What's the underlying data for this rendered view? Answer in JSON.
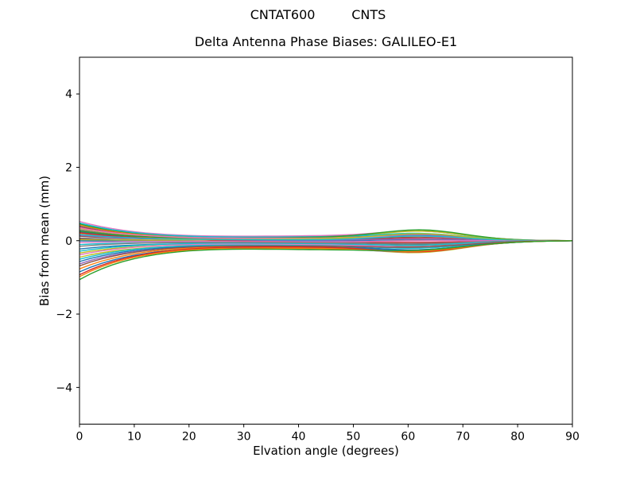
{
  "figure": {
    "suptitle": "CNTAT600         CNTS",
    "title": "Delta Antenna Phase Biases: GALILEO-E1",
    "xlabel": "Elvation angle (degrees)",
    "ylabel": "Bias from mean (mm)"
  },
  "chart_data": {
    "type": "line",
    "suptitle": "CNTAT600         CNTS",
    "title": "Delta Antenna Phase Biases: GALILEO-E1",
    "xlabel": "Elvation angle (degrees)",
    "ylabel": "Bias from mean (mm)",
    "xlim": [
      0,
      90
    ],
    "ylim": [
      -5,
      5
    ],
    "xticks": [
      0,
      10,
      20,
      30,
      40,
      50,
      60,
      70,
      80,
      90
    ],
    "yticks": [
      -4,
      -2,
      0,
      2,
      4
    ],
    "grid": false,
    "legend": null,
    "background": "#ffffff",
    "axes_color": "#000000",
    "line_width": 1.4,
    "x_samples": {
      "start": 0,
      "end": 90,
      "step": 2
    },
    "series_model": "y(x) = (v0*exp(-x/12) + m*exp(-((x-48)/28)^2) + b*exp(-((x-63)/11)^2)) * (1-(x/90)^8); v0 = bias at 0 deg elevation (mm), m = mid-elevation offset (mm), b = bump amplitude near 63 deg (mm); all curves converge to 0 mm at 90 deg",
    "series": [
      {
        "color": "#1f77b4",
        "v0": 0.4,
        "m": 0.08,
        "b": 0.1
      },
      {
        "color": "#ff7f0e",
        "v0": 0.42,
        "m": 0.05,
        "b": 0.15
      },
      {
        "color": "#2ca02c",
        "v0": 0.45,
        "m": 0.1,
        "b": 0.2
      },
      {
        "color": "#d62728",
        "v0": 0.37,
        "m": 0.02,
        "b": 0.05
      },
      {
        "color": "#9467bd",
        "v0": 0.28,
        "m": 0.06,
        "b": 0.12
      },
      {
        "color": "#8c564b",
        "v0": 0.12,
        "m": 0.03,
        "b": 0.08
      },
      {
        "color": "#e377c2",
        "v0": 0.52,
        "m": 0.12,
        "b": 0.18
      },
      {
        "color": "#7f7f7f",
        "v0": 0.3,
        "m": 0.0,
        "b": 0.02
      },
      {
        "color": "#bcbd22",
        "v0": 0.33,
        "m": 0.07,
        "b": 0.22
      },
      {
        "color": "#17becf",
        "v0": 0.48,
        "m": 0.09,
        "b": 0.14
      },
      {
        "color": "#1f77b4",
        "v0": 0.24,
        "m": -0.02,
        "b": 0.06
      },
      {
        "color": "#ff7f0e",
        "v0": 0.2,
        "m": 0.04,
        "b": 0.1
      },
      {
        "color": "#2ca02c",
        "v0": 0.26,
        "m": 0.08,
        "b": 0.25
      },
      {
        "color": "#d62728",
        "v0": 0.22,
        "m": -0.04,
        "b": -0.02
      },
      {
        "color": "#9467bd",
        "v0": 0.15,
        "m": 0.01,
        "b": 0.04
      },
      {
        "color": "#8c564b",
        "v0": 0.05,
        "m": -0.06,
        "b": -0.05
      },
      {
        "color": "#e377c2",
        "v0": 0.35,
        "m": 0.06,
        "b": 0.08
      },
      {
        "color": "#7f7f7f",
        "v0": 0.08,
        "m": -0.08,
        "b": -0.08
      },
      {
        "color": "#bcbd22",
        "v0": 0.02,
        "m": 0.05,
        "b": 0.16
      },
      {
        "color": "#17becf",
        "v0": 0.17,
        "m": 0.02,
        "b": 0.12
      },
      {
        "color": "#1f77b4",
        "v0": 0.0,
        "m": -0.1,
        "b": -0.1
      },
      {
        "color": "#e377c2",
        "v0": -0.05,
        "m": -0.03,
        "b": 0.02
      },
      {
        "color": "#17becf",
        "v0": -0.1,
        "m": -0.12,
        "b": -0.12
      },
      {
        "color": "#7f7f7f",
        "v0": -0.15,
        "m": -0.05,
        "b": -0.04
      },
      {
        "color": "#1f77b4",
        "v0": -0.22,
        "m": -0.14,
        "b": -0.15
      },
      {
        "color": "#17becf",
        "v0": -0.28,
        "m": -0.08,
        "b": -0.06
      },
      {
        "color": "#bcbd22",
        "v0": -0.33,
        "m": -0.15,
        "b": -0.18
      },
      {
        "color": "#e377c2",
        "v0": -0.38,
        "m": -0.1,
        "b": -0.1
      },
      {
        "color": "#bcbd22",
        "v0": -0.44,
        "m": -0.18,
        "b": -0.2
      },
      {
        "color": "#17becf",
        "v0": -0.5,
        "m": -0.12,
        "b": -0.12
      },
      {
        "color": "#1f77b4",
        "v0": -0.56,
        "m": -0.16,
        "b": -0.14
      },
      {
        "color": "#9467bd",
        "v0": -0.62,
        "m": -0.2,
        "b": -0.16
      },
      {
        "color": "#8c564b",
        "v0": -0.68,
        "m": -0.13,
        "b": -0.08
      },
      {
        "color": "#ff7f0e",
        "v0": -0.76,
        "m": -0.17,
        "b": -0.18
      },
      {
        "color": "#1f77b4",
        "v0": -0.84,
        "m": -0.21,
        "b": -0.12
      },
      {
        "color": "#d62728",
        "v0": -0.92,
        "m": -0.15,
        "b": -0.2
      },
      {
        "color": "#ff7f0e",
        "v0": -0.97,
        "m": -0.19,
        "b": -0.15
      },
      {
        "color": "#2ca02c",
        "v0": -1.05,
        "m": -0.22,
        "b": -0.1
      }
    ]
  }
}
